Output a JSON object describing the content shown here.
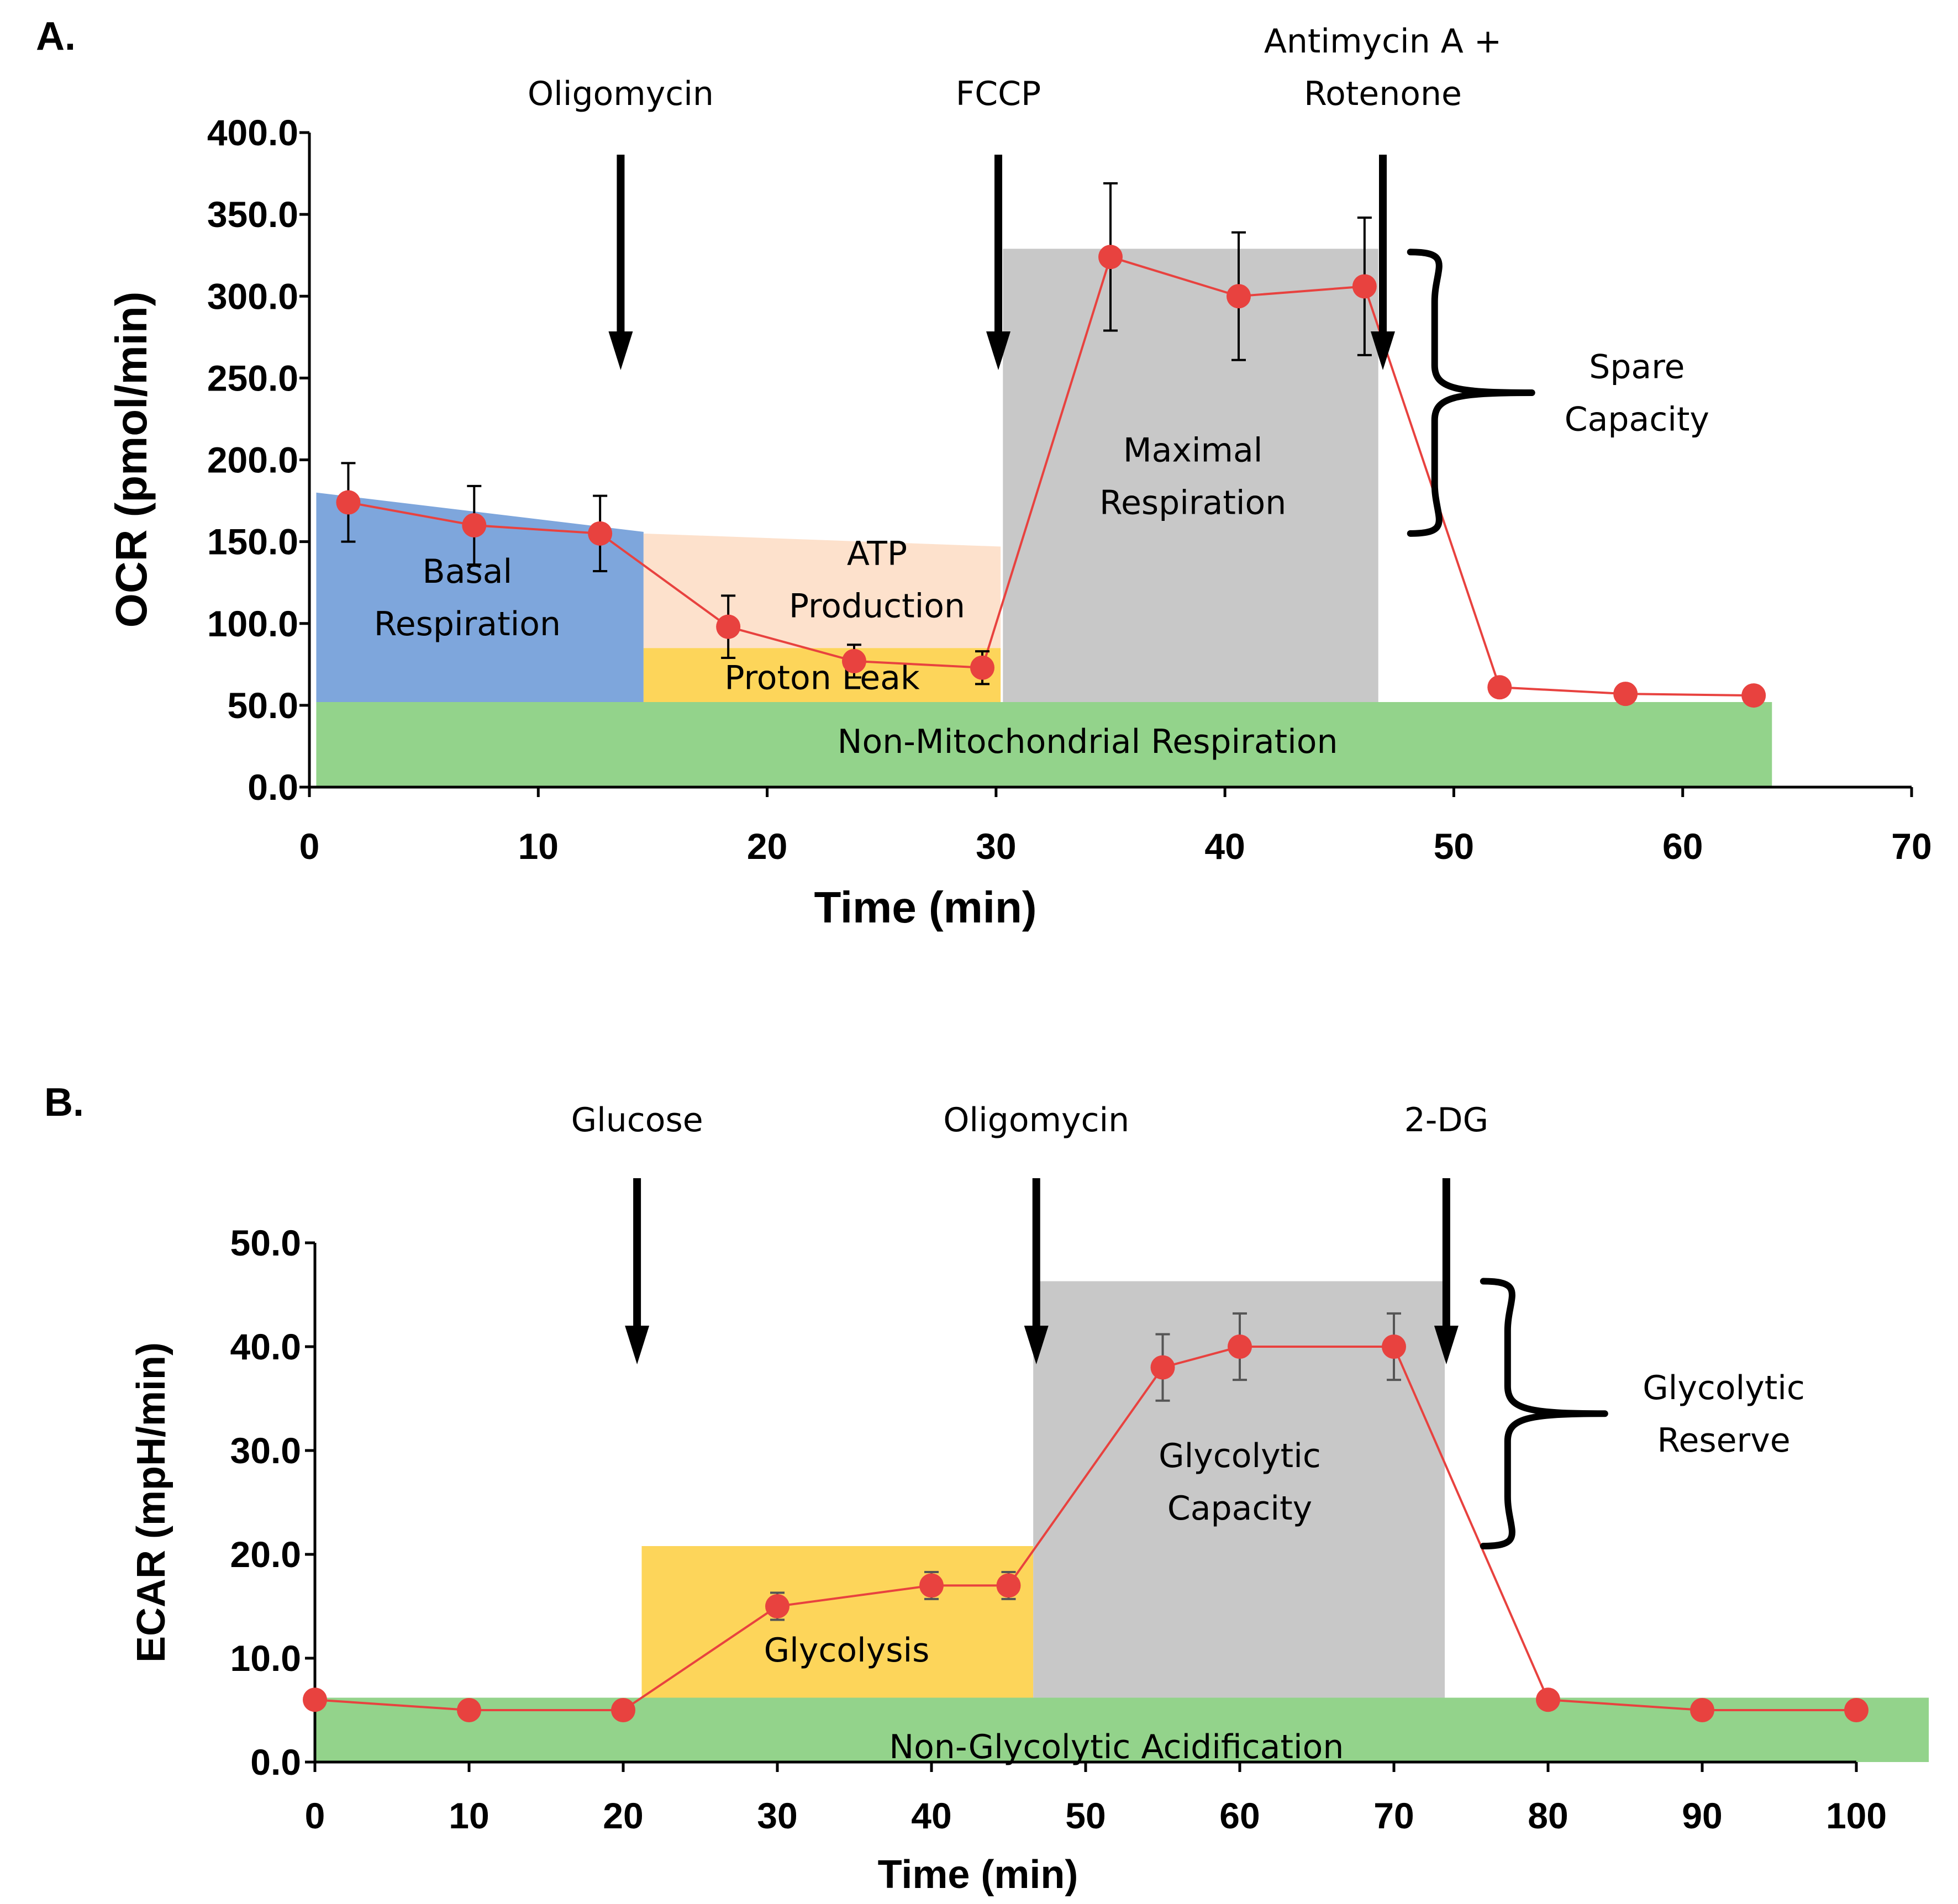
{
  "chart_data": [
    {
      "type": "line",
      "panel_label": "A.",
      "xlabel": "Time (min)",
      "ylabel": "OCR (pmol/min)",
      "xlim": [
        0,
        70
      ],
      "ylim": [
        0,
        400
      ],
      "xticks": [
        0,
        10,
        20,
        30,
        40,
        50,
        60,
        70
      ],
      "xtick_labels": [
        "0",
        "10",
        "20",
        "30",
        "40",
        "50",
        "60",
        "70"
      ],
      "yticks": [
        0,
        50,
        100,
        150,
        200,
        250,
        300,
        350,
        400
      ],
      "ytick_labels": [
        "0.0",
        "50.0",
        "100.0",
        "150.0",
        "200.0",
        "250.0",
        "300.0",
        "350.0",
        "400.0"
      ],
      "series": [
        {
          "name": "OCR",
          "color": "#e8423f",
          "x": [
            1.7,
            7.2,
            12.7,
            18.3,
            23.8,
            29.4,
            35.0,
            40.6,
            46.1,
            52.0,
            57.5,
            63.1
          ],
          "y": [
            174,
            160,
            155,
            98,
            77,
            73,
            324,
            300,
            306,
            61,
            57,
            56
          ],
          "err": [
            24,
            24,
            23,
            19,
            10,
            10,
            45,
            39,
            42,
            0,
            0,
            0
          ]
        }
      ],
      "regions": [
        {
          "name": "non-mitochondrial",
          "label": [
            "Non-Mitochondrial Respiration"
          ],
          "color": "#93d38b",
          "poly": [
            [
              0.3,
              0
            ],
            [
              63.9,
              0
            ],
            [
              63.9,
              52
            ],
            [
              0.3,
              52
            ]
          ],
          "label_at": [
            34,
            28
          ]
        },
        {
          "name": "basal",
          "label": [
            "Basal",
            "Respiration"
          ],
          "color": "#7ea6dc",
          "poly": [
            [
              0.3,
              52
            ],
            [
              14.6,
              52
            ],
            [
              14.6,
              156
            ],
            [
              0.3,
              180
            ]
          ],
          "label_at": [
            6.9,
            116
          ]
        },
        {
          "name": "atp",
          "label": [
            "ATP",
            "Production"
          ],
          "color": "#fde1cc",
          "poly": [
            [
              14.6,
              85
            ],
            [
              30.2,
              85
            ],
            [
              30.2,
              147
            ],
            [
              14.6,
              155
            ]
          ],
          "label_at": [
            24.8,
            127
          ]
        },
        {
          "name": "proton-leak",
          "label": [
            "Proton Leak"
          ],
          "color": "#fdd55a",
          "poly": [
            [
              14.6,
              52
            ],
            [
              30.2,
              52
            ],
            [
              30.2,
              85
            ],
            [
              14.6,
              85
            ]
          ],
          "label_at": [
            22.4,
            67
          ]
        },
        {
          "name": "maximal",
          "label": [
            "Maximal",
            "Respiration"
          ],
          "color": "#c8c8c8",
          "poly": [
            [
              30.3,
              52
            ],
            [
              46.7,
              52
            ],
            [
              46.7,
              329
            ],
            [
              30.3,
              329
            ]
          ],
          "label_at": [
            38.6,
            190
          ]
        }
      ],
      "injections": [
        {
          "label": [
            "Oligomycin"
          ],
          "x": 13.6
        },
        {
          "label": [
            "FCCP"
          ],
          "x": 30.1
        },
        {
          "label": [
            "Antimycin A +",
            "Rotenone"
          ],
          "x": 46.9
        }
      ],
      "bracket": {
        "x": 48.1,
        "y_top": 327,
        "y_bottom": 155,
        "label": [
          "Spare",
          "Capacity"
        ],
        "label_x": 58.0
      }
    },
    {
      "type": "line",
      "panel_label": "B.",
      "xlabel": "Time (min)",
      "ylabel": "ECAR (mpH/min)",
      "xlim": [
        0,
        100
      ],
      "ylim": [
        0,
        50
      ],
      "xticks": [
        0,
        10,
        20,
        30,
        40,
        50,
        60,
        70,
        80,
        90,
        100
      ],
      "xtick_labels": [
        "0",
        "10",
        "20",
        "30",
        "40",
        "50",
        "60",
        "70",
        "80",
        "90",
        "100"
      ],
      "yticks": [
        0,
        10,
        20,
        30,
        40,
        50
      ],
      "ytick_labels": [
        "0.0",
        "10.0",
        "20.0",
        "30.0",
        "40.0",
        "50.0"
      ],
      "series": [
        {
          "name": "ECAR",
          "color": "#e8423f",
          "x": [
            0,
            10,
            20,
            30,
            40,
            45,
            55,
            60,
            70,
            80,
            90,
            100
          ],
          "y": [
            6.0,
            5.0,
            5.0,
            15.0,
            17.0,
            17.0,
            38.0,
            40.0,
            40.0,
            6.0,
            5.0,
            5.0
          ],
          "err": [
            0,
            0,
            0,
            1.3,
            1.3,
            1.3,
            3.2,
            3.2,
            3.2,
            0,
            0,
            0
          ]
        }
      ],
      "regions": [
        {
          "name": "non-glycolytic",
          "label": [
            "Non-Glycolytic Acidification"
          ],
          "color": "#93d38b",
          "poly": [
            [
              0,
              0
            ],
            [
              104.7,
              0
            ],
            [
              104.7,
              6.2
            ],
            [
              0,
              6.2
            ]
          ],
          "label_at": [
            52,
            1.5
          ]
        },
        {
          "name": "glycolysis",
          "label": [
            "Glycolysis"
          ],
          "color": "#fdd55a",
          "poly": [
            [
              21.2,
              6.2
            ],
            [
              46.6,
              6.2
            ],
            [
              46.6,
              20.8
            ],
            [
              21.2,
              20.8
            ]
          ],
          "label_at": [
            34.5,
            10.8
          ]
        },
        {
          "name": "glycolytic-capacity",
          "label": [
            "Glycolytic",
            "Capacity"
          ],
          "color": "#c8c8c8",
          "poly": [
            [
              46.6,
              6.2
            ],
            [
              73.3,
              6.2
            ],
            [
              73.3,
              46.3
            ],
            [
              46.6,
              46.3
            ]
          ],
          "label_at": [
            60,
            27
          ]
        }
      ],
      "injections": [
        {
          "label": [
            "Glucose"
          ],
          "x": 20.9
        },
        {
          "label": [
            "Oligomycin"
          ],
          "x": 46.8
        },
        {
          "label": [
            "2-DG"
          ],
          "x": 73.4
        }
      ],
      "bracket": {
        "x": 75.8,
        "y_top": 46.3,
        "y_bottom": 20.8,
        "label": [
          "Glycolytic",
          "Reserve"
        ],
        "label_x": 91.4
      }
    }
  ]
}
